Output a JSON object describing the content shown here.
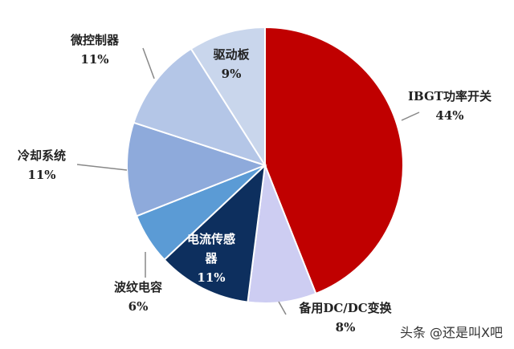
{
  "chart_data": {
    "type": "pie",
    "categories": [
      "IBGT功率开关",
      "备用DC/DC变换",
      "电流传感器",
      "波纹电容",
      "冷却系统",
      "微控制器",
      "驱动板"
    ],
    "values": [
      44,
      8,
      11,
      6,
      11,
      11,
      9
    ],
    "value_labels": [
      "44%",
      "8%",
      "11%",
      "6%",
      "11%",
      "11%",
      "9%"
    ],
    "colors": [
      "#c00000",
      "#cdcdf2",
      "#0d2f5e",
      "#5b9bd5",
      "#8eaadb",
      "#b4c6e7",
      "#c9d6ec"
    ]
  },
  "watermark": "头条 @还是叫X吧"
}
